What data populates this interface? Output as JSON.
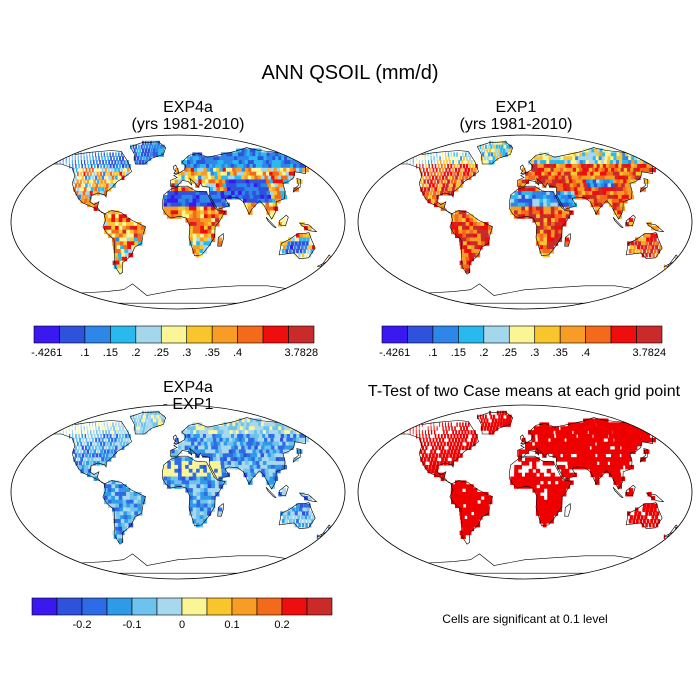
{
  "figure": {
    "title": "ANN QSOIL (mm/d)"
  },
  "panels": [
    {
      "id": "exp4a",
      "title_line1": "EXP4a",
      "title_line2": "(yrs 1981-2010)",
      "scheme": "field_a",
      "colorbar": {
        "colors": [
          "#3a18f0",
          "#2f52dc",
          "#2e87e8",
          "#2ab9ee",
          "#a4d6ec",
          "#fbf596",
          "#f9c52c",
          "#f79c24",
          "#f36a1a",
          "#ee0e0e",
          "#c92b2b"
        ],
        "labels": [
          "-.4261",
          ".1",
          ".15",
          ".2",
          ".25",
          ".3",
          ".35",
          ".4",
          "3.7828"
        ]
      }
    },
    {
      "id": "exp1",
      "title_line1": "EXP1",
      "title_line2": "(yrs 1981-2010)",
      "scheme": "field_b",
      "colorbar": {
        "colors": [
          "#3a18f0",
          "#2f52dc",
          "#2e87e8",
          "#2ab9ee",
          "#a4d6ec",
          "#fbf596",
          "#f9c52c",
          "#f79c24",
          "#f36a1a",
          "#ee0e0e",
          "#c92b2b"
        ],
        "labels": [
          "-.4261",
          ".1",
          ".15",
          ".2",
          ".25",
          ".3",
          ".35",
          ".4",
          "3.7824"
        ]
      }
    },
    {
      "id": "diff",
      "title_line1": "EXP4a",
      "title_line2": "- EXP1",
      "scheme": "diff",
      "colorbar": {
        "colors": [
          "#3a18f0",
          "#2f52dc",
          "#2e6be6",
          "#2e9ae8",
          "#6ec2ee",
          "#a8d8ee",
          "#fbf596",
          "#f9c52c",
          "#f79c24",
          "#f36a1a",
          "#ee0e0e",
          "#c92b2b"
        ],
        "labels": [
          "-0.2",
          "-0.1",
          "0",
          "0.1",
          "0.2"
        ]
      }
    },
    {
      "id": "ttest",
      "title": "T-Test of two Case means at each grid point",
      "scheme": "ttest",
      "significance_color": "#ee0000",
      "note": "Cells are significant at 0.1 level"
    }
  ]
}
